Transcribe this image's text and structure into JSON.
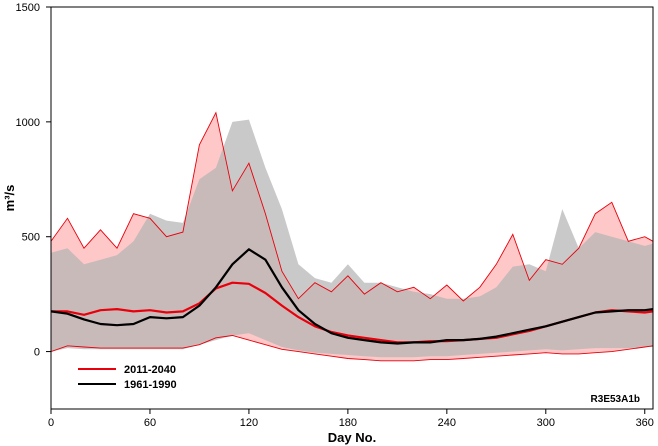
{
  "chart_data": {
    "type": "line",
    "title": "",
    "xlabel": "Day No.",
    "ylabel": "m³/s",
    "xlim": [
      0,
      365
    ],
    "ylim": [
      -250,
      1500
    ],
    "x_ticks": [
      0,
      60,
      120,
      180,
      240,
      300,
      360
    ],
    "y_ticks": [
      0,
      500,
      1000,
      1500
    ],
    "legend_position": "bottom-left",
    "annotation": "R3E53A1b",
    "colors": {
      "future_line": "#e8000b",
      "future_band": "#ffc8c8",
      "baseline_line": "#000000",
      "baseline_band": "#b4b4b4",
      "overlap_band": "#c9a4a4"
    },
    "series": [
      {
        "name": "2011-2040",
        "x": [
          0,
          10,
          20,
          30,
          40,
          50,
          60,
          70,
          80,
          90,
          100,
          110,
          120,
          130,
          140,
          150,
          160,
          170,
          180,
          190,
          200,
          210,
          220,
          230,
          240,
          250,
          260,
          270,
          280,
          290,
          300,
          310,
          320,
          330,
          340,
          350,
          360,
          365
        ],
        "values": [
          175,
          175,
          160,
          180,
          185,
          175,
          180,
          170,
          175,
          210,
          275,
          300,
          295,
          255,
          200,
          150,
          110,
          85,
          70,
          60,
          50,
          40,
          40,
          45,
          45,
          50,
          55,
          60,
          75,
          90,
          110,
          130,
          150,
          170,
          180,
          175,
          170,
          175
        ],
        "band_low": [
          0,
          25,
          20,
          15,
          15,
          15,
          15,
          15,
          15,
          30,
          60,
          70,
          50,
          30,
          10,
          0,
          -10,
          -20,
          -30,
          -35,
          -40,
          -40,
          -40,
          -35,
          -35,
          -30,
          -25,
          -20,
          -15,
          -10,
          -5,
          -10,
          -10,
          -5,
          0,
          10,
          20,
          25
        ],
        "band_high": [
          480,
          580,
          450,
          530,
          450,
          600,
          580,
          500,
          520,
          900,
          1040,
          700,
          820,
          600,
          350,
          230,
          300,
          260,
          330,
          250,
          300,
          260,
          280,
          230,
          290,
          220,
          280,
          380,
          510,
          310,
          400,
          380,
          450,
          600,
          650,
          480,
          500,
          480
        ]
      },
      {
        "name": "1961-1990",
        "x": [
          0,
          10,
          20,
          30,
          40,
          50,
          60,
          70,
          80,
          90,
          100,
          110,
          120,
          130,
          140,
          150,
          160,
          170,
          180,
          190,
          200,
          210,
          220,
          230,
          240,
          250,
          260,
          270,
          280,
          290,
          300,
          310,
          320,
          330,
          340,
          350,
          360,
          365
        ],
        "values": [
          175,
          165,
          140,
          120,
          115,
          120,
          150,
          145,
          150,
          200,
          280,
          380,
          445,
          400,
          280,
          180,
          120,
          80,
          60,
          50,
          40,
          35,
          40,
          40,
          50,
          50,
          55,
          65,
          80,
          95,
          110,
          130,
          150,
          170,
          175,
          180,
          180,
          185
        ],
        "band_low": [
          0,
          15,
          10,
          10,
          10,
          10,
          10,
          10,
          10,
          30,
          50,
          70,
          80,
          50,
          20,
          5,
          -5,
          -10,
          -15,
          -20,
          -25,
          -25,
          -25,
          -20,
          -20,
          -15,
          -10,
          -5,
          0,
          5,
          10,
          5,
          10,
          15,
          15,
          15,
          20,
          20
        ],
        "band_high": [
          430,
          450,
          380,
          400,
          420,
          480,
          600,
          570,
          560,
          750,
          800,
          1000,
          1010,
          800,
          620,
          380,
          320,
          300,
          380,
          300,
          300,
          280,
          260,
          250,
          230,
          230,
          240,
          280,
          370,
          380,
          350,
          620,
          450,
          520,
          500,
          480,
          460,
          470
        ]
      }
    ]
  }
}
